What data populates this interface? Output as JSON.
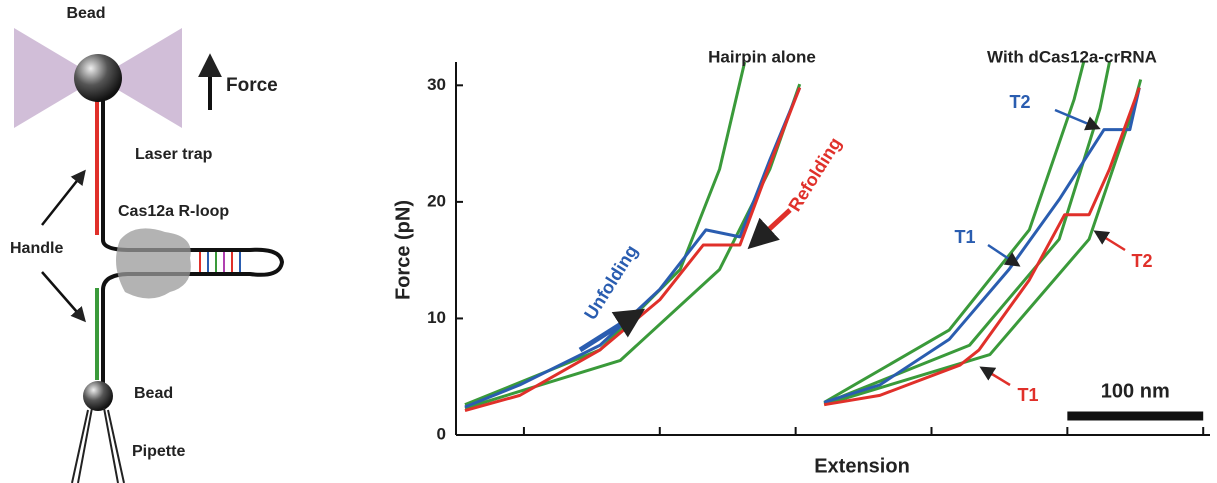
{
  "schematic": {
    "labels": [
      "Bead",
      "Force",
      "Laser trap",
      "Cas12a R-loop",
      "Handle",
      "Bead",
      "Pipette"
    ]
  },
  "chart_data": {
    "type": "line",
    "x_label": "Extension",
    "y_label": "Force (pN)",
    "xlim": [
      0,
      555
    ],
    "xticks": [
      50,
      150,
      250,
      350,
      450,
      550
    ],
    "ylim": [
      0,
      32
    ],
    "yticks": [
      0,
      10,
      20,
      30
    ],
    "annotations": [
      "Hairpin alone",
      "With dCas12a-crRNA",
      "Unfolding",
      "Refolding",
      "T2",
      "T1",
      "T2",
      "T1"
    ],
    "scale_bar": {
      "x": [
        450,
        550
      ],
      "label": "100 nm"
    },
    "series": [
      {
        "color": "#3a9a3a",
        "x": [
          6.6,
          106,
          165,
          194,
          212.5
        ],
        "values": [
          2.6,
          7.3,
          14.2,
          22.8,
          32
        ]
      },
      {
        "color": "#3a9a3a",
        "x": [
          6.6,
          121,
          194,
          231,
          253
        ],
        "values": [
          2.3,
          6.4,
          14.2,
          22.8,
          30.1
        ]
      },
      {
        "color": "#2a5db0",
        "x": [
          6.6,
          47,
          106,
          150,
          184,
          209,
          231,
          253
        ],
        "values": [
          2.4,
          4.3,
          7.7,
          12.5,
          17.6,
          17,
          23.6,
          29.8
        ]
      },
      {
        "color": "#e0302a",
        "x": [
          253,
          231,
          209,
          182,
          150,
          106,
          47,
          6.6
        ],
        "values": [
          29.8,
          23.2,
          16.3,
          16.3,
          11.6,
          7.3,
          3.4,
          2.1
        ]
      },
      {
        "color": "#3a9a3a",
        "x": [
          271,
          363,
          422,
          455,
          462
        ],
        "values": [
          2.8,
          9,
          17.6,
          28.8,
          32
        ]
      },
      {
        "color": "#3a9a3a",
        "x": [
          271,
          378,
          444,
          474,
          481
        ],
        "values": [
          2.7,
          7.7,
          16.8,
          28,
          32
        ]
      },
      {
        "color": "#3a9a3a",
        "x": [
          271,
          393,
          466,
          496,
          504
        ],
        "values": [
          2.6,
          6.9,
          16.8,
          27.1,
          30.5
        ]
      },
      {
        "color": "#2a5db0",
        "x": [
          271,
          312,
          363,
          407,
          444,
          477,
          496,
          503
        ],
        "values": [
          2.8,
          4.3,
          8.2,
          14.2,
          20.2,
          26.2,
          26.2,
          29.8
        ]
      },
      {
        "color": "#e0302a",
        "x": [
          503,
          481,
          466,
          448,
          422,
          385,
          371,
          312,
          271
        ],
        "values": [
          29.8,
          22.8,
          18.9,
          18.9,
          13.3,
          7.3,
          6,
          3.4,
          2.6
        ]
      }
    ]
  }
}
